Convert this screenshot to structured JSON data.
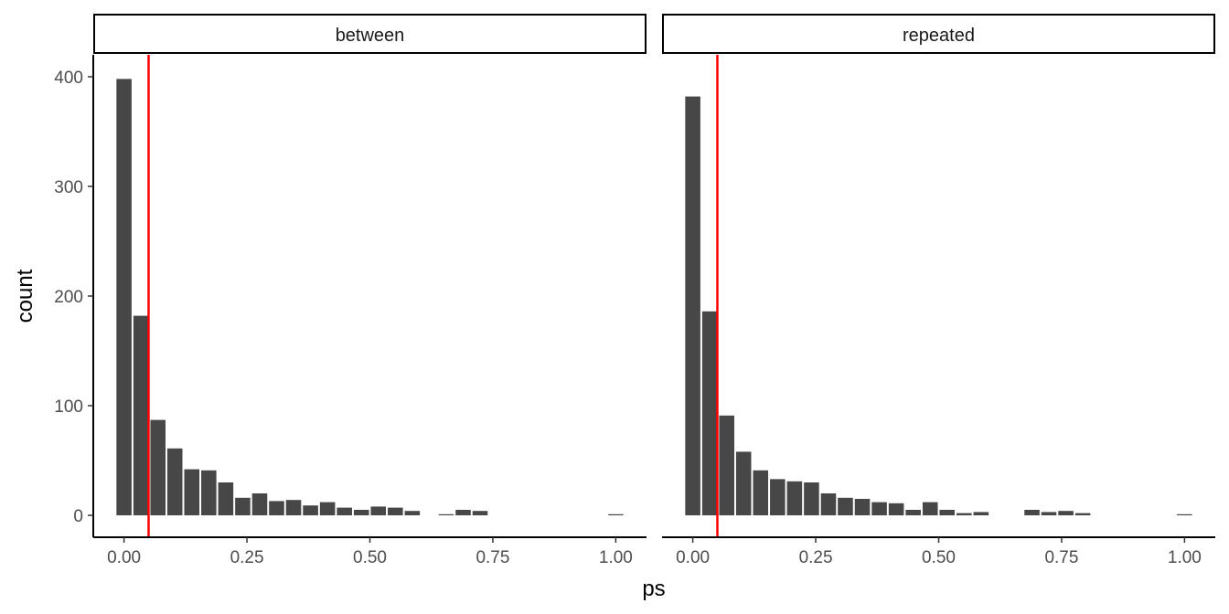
{
  "chart_data": {
    "type": "bar",
    "xlabel": "ps",
    "ylabel": "count",
    "xlim": [
      -0.0625,
      1.0625
    ],
    "ylim": [
      -20,
      420
    ],
    "x_ticks": [
      "0.00",
      "0.25",
      "0.50",
      "0.75",
      "1.00"
    ],
    "x_tick_values": [
      0,
      0.25,
      0.5,
      0.75,
      1.0
    ],
    "y_ticks": [
      "0",
      "100",
      "200",
      "300",
      "400"
    ],
    "y_tick_values": [
      0,
      100,
      200,
      300,
      400
    ],
    "bin_width": 0.0345,
    "bin_centers": [
      0.0,
      0.0345,
      0.069,
      0.1034,
      0.1379,
      0.1724,
      0.2069,
      0.2414,
      0.2759,
      0.3103,
      0.3448,
      0.3793,
      0.4138,
      0.4483,
      0.4828,
      0.5172,
      0.5517,
      0.5862,
      0.6207,
      0.6552,
      0.6897,
      0.7241,
      0.7586,
      0.7931,
      0.8276,
      0.8621,
      0.8966,
      0.931,
      0.9655,
      1.0
    ],
    "reference_line": {
      "x": 0.05,
      "color": "#ff0000"
    },
    "bar_color": "#474747",
    "grid": false,
    "panels": [
      {
        "label": "between",
        "counts": [
          398,
          182,
          87,
          61,
          42,
          41,
          30,
          16,
          20,
          13,
          14,
          9,
          12,
          7,
          5,
          8,
          7,
          4,
          0,
          1,
          5,
          4,
          0,
          0,
          0,
          0,
          0,
          0,
          0,
          1
        ]
      },
      {
        "label": "repeated",
        "counts": [
          382,
          186,
          91,
          58,
          41,
          33,
          31,
          30,
          20,
          16,
          15,
          12,
          11,
          5,
          12,
          5,
          2,
          3,
          0,
          0,
          5,
          3,
          4,
          2,
          0,
          0,
          0,
          0,
          0,
          1
        ]
      }
    ]
  }
}
